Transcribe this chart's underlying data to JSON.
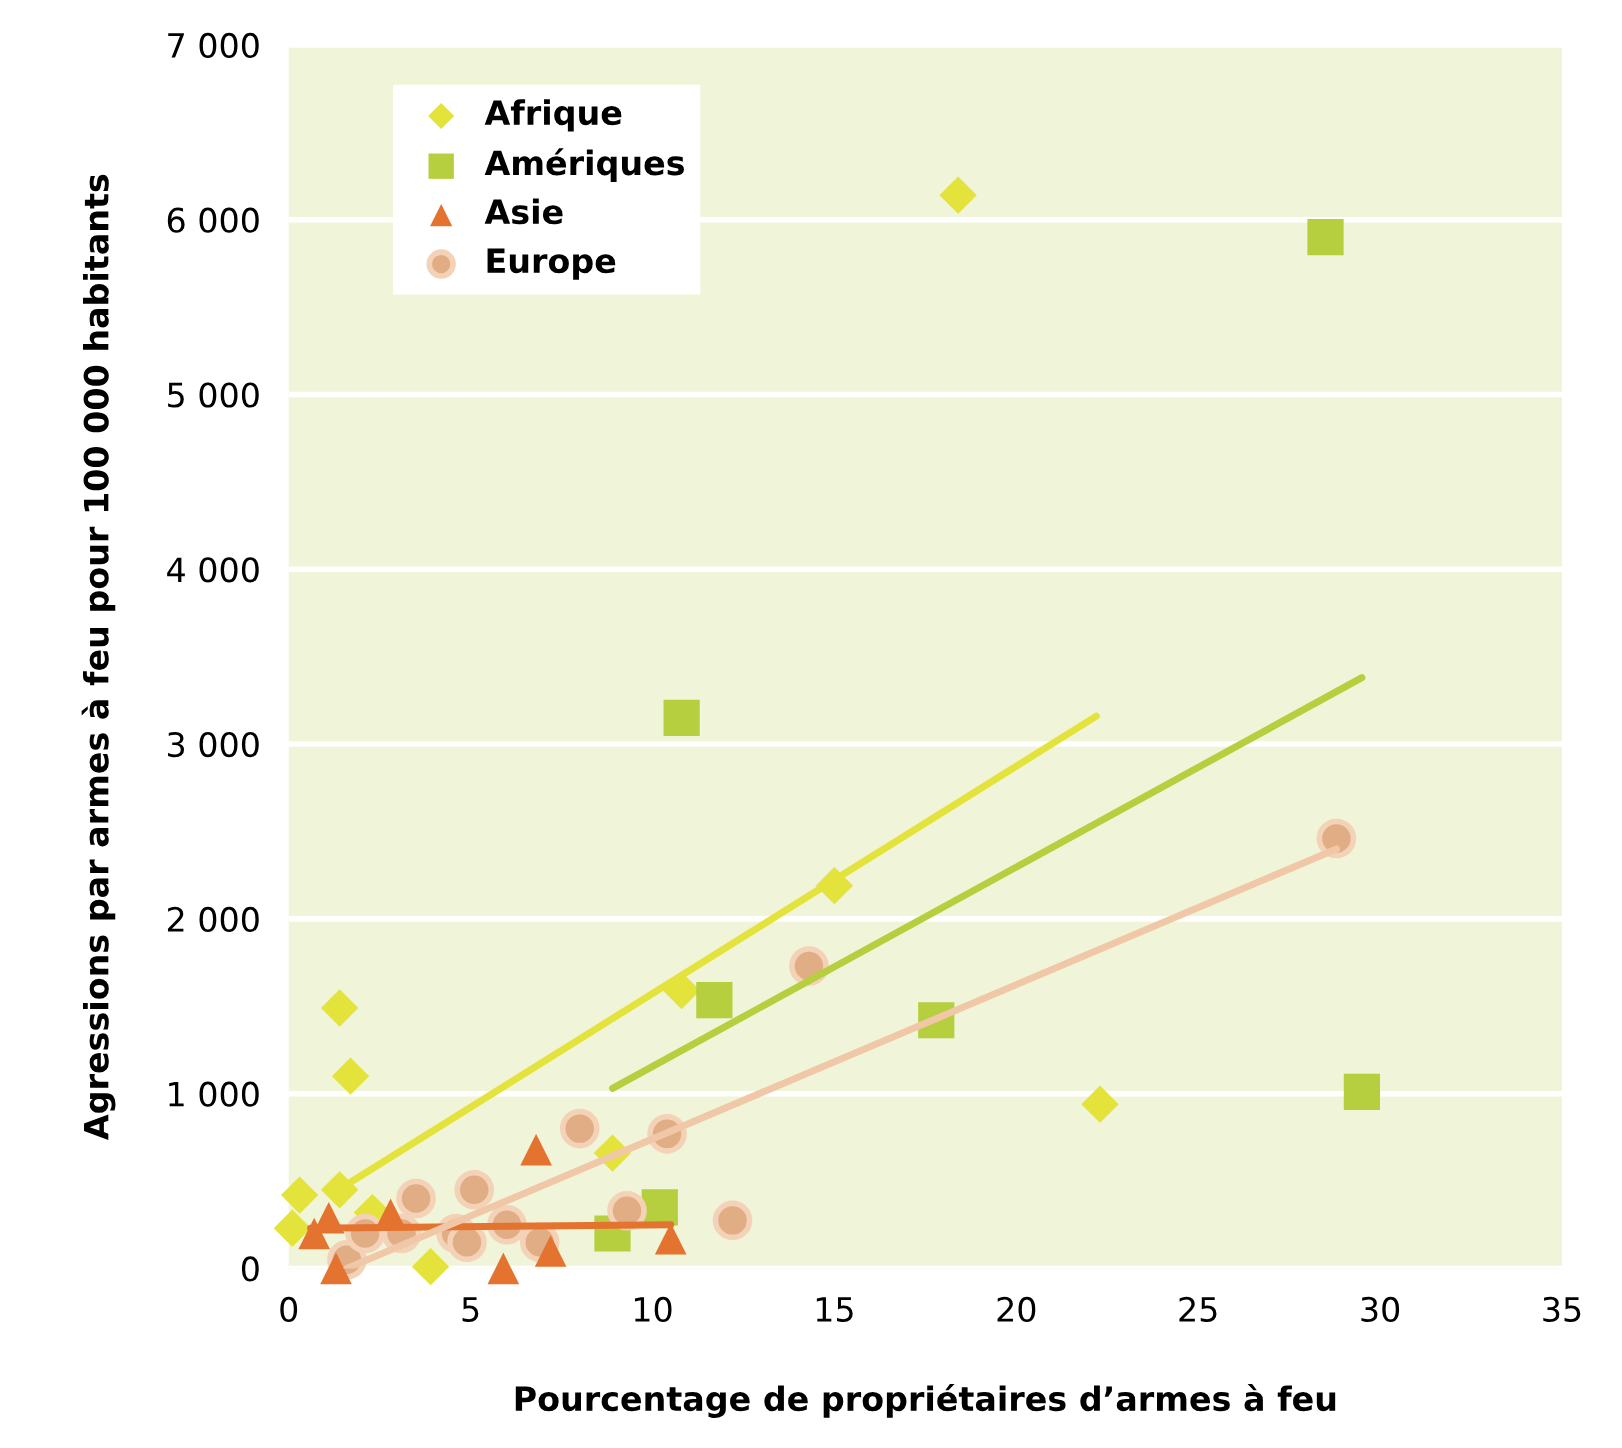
{
  "chart_data": {
    "type": "scatter",
    "xlabel": "Pourcentage de propriétaires d’armes à feu",
    "ylabel": "Agressions par armes à feu pour 100 000 habitants",
    "xlim": [
      0,
      35
    ],
    "xticks": [
      0,
      5,
      10,
      15,
      20,
      25,
      30,
      35
    ],
    "ylim": [
      0,
      7000
    ],
    "yticks": [
      {
        "value": 0,
        "label": "0"
      },
      {
        "value": 1000,
        "label": "1 000"
      },
      {
        "value": 2000,
        "label": "2 000"
      },
      {
        "value": 3000,
        "label": "3 000"
      },
      {
        "value": 4000,
        "label": "4 000"
      },
      {
        "value": 5000,
        "label": "5 000"
      },
      {
        "value": 6000,
        "label": "6 000"
      },
      {
        "value": 7000,
        "label": "7 000"
      }
    ],
    "grid": "y",
    "legend": "top left",
    "series": [
      {
        "name": "Afrique",
        "color": "#e3e33b",
        "marker": "diamond",
        "x": [
          0.1,
          0.3,
          1.4,
          1.4,
          1.7,
          2.3,
          3.9,
          8.9,
          10.8,
          15.0,
          18.4,
          22.3
        ],
        "values": [
          230,
          420,
          450,
          1490,
          1100,
          320,
          10,
          660,
          1590,
          2190,
          6140,
          940
        ]
      },
      {
        "name": "Amériques",
        "color": "#b5cf3e",
        "marker": "square",
        "x": [
          8.9,
          10.2,
          10.8,
          11.7,
          17.8,
          28.5,
          29.5
        ],
        "values": [
          200,
          350,
          3150,
          1535,
          1420,
          5900,
          1010
        ]
      },
      {
        "name": "Asie",
        "color": "#e57330",
        "marker": "triangle",
        "x": [
          0.7,
          1.1,
          1.3,
          2.8,
          5.9,
          6.8,
          7.2,
          10.5
        ],
        "values": [
          200,
          290,
          0,
          310,
          0,
          680,
          100,
          170
        ]
      },
      {
        "name": "Europe",
        "color": "#e0ad85",
        "marker": "circle",
        "x": [
          1.6,
          2.1,
          3.1,
          3.5,
          4.6,
          4.9,
          5.1,
          6.0,
          6.9,
          8.0,
          9.3,
          10.4,
          12.2,
          14.3,
          28.8
        ],
        "values": [
          50,
          200,
          200,
          400,
          200,
          150,
          450,
          250,
          150,
          800,
          330,
          770,
          275,
          1730,
          2460
        ]
      },
      {
        "type": "line",
        "color": "#e3e33b",
        "x": [
          1.6,
          22.2
        ],
        "values": [
          480,
          3160
        ]
      },
      {
        "type": "line",
        "color": "#b5cf3e",
        "x": [
          8.9,
          29.5
        ],
        "values": [
          1030,
          3380
        ]
      },
      {
        "type": "line",
        "color": "#e57330",
        "x": [
          0.6,
          10.5
        ],
        "values": [
          230,
          250
        ]
      },
      {
        "type": "line",
        "color": "#f0c8a8",
        "x": [
          1.6,
          28.8
        ],
        "values": [
          0,
          2400
        ]
      }
    ]
  }
}
